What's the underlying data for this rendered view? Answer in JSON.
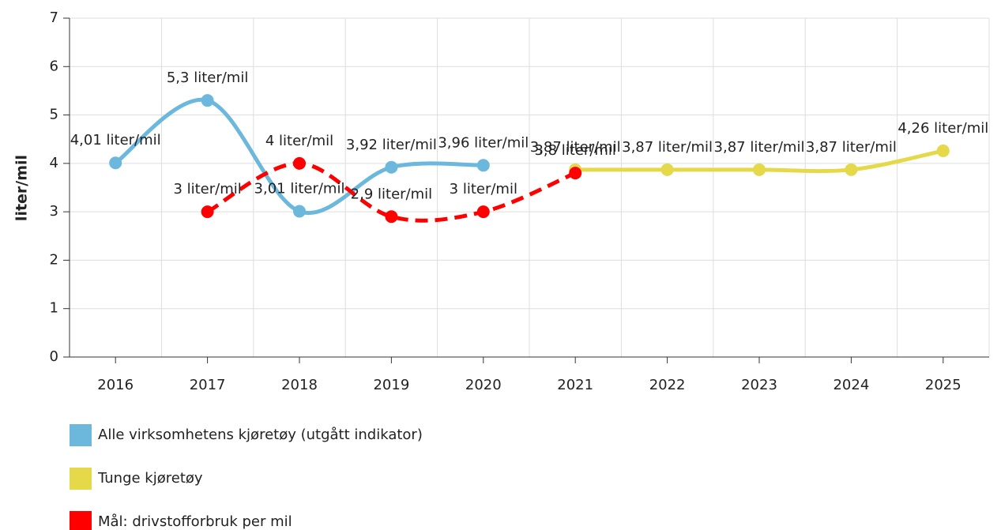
{
  "chart_data": {
    "type": "line",
    "y_label": "liter/mil",
    "categories": [
      "2016",
      "2017",
      "2018",
      "2019",
      "2020",
      "2021",
      "2022",
      "2023",
      "2024",
      "2025"
    ],
    "series": [
      {
        "name": "Alle virksomhetens kjøretøy (utgått indikator)",
        "color": "#6bb8dc",
        "dashed": false,
        "values": [
          4.01,
          5.3,
          3.01,
          3.92,
          3.96,
          null,
          null,
          null,
          null,
          null
        ],
        "value_labels": [
          "4,01 liter/mil",
          "5,3 liter/mil",
          "3,01 liter/mil",
          "3,92 liter/mil",
          "3,96 liter/mil",
          null,
          null,
          null,
          null,
          null
        ]
      },
      {
        "name": "Tunge kjøretøy",
        "color": "#e5d94a",
        "dashed": false,
        "values": [
          null,
          null,
          null,
          null,
          null,
          3.87,
          3.87,
          3.87,
          3.87,
          4.26
        ],
        "value_labels": [
          null,
          null,
          null,
          null,
          null,
          "3,87 liter/mil",
          "3,87 liter/mil",
          "3,87 liter/mil",
          "3,87 liter/mil",
          "4,26 liter/mil"
        ]
      },
      {
        "name": "Mål: drivstofforbruk per mil",
        "color": "#ff0000",
        "dashed": true,
        "values": [
          null,
          3,
          4,
          2.9,
          3,
          3.8,
          null,
          null,
          null,
          null
        ],
        "value_labels": [
          null,
          "3 liter/mil",
          "4 liter/mil",
          "2,9 liter/mil",
          "3 liter/mil",
          "3,8 liter/mil",
          null,
          null,
          null,
          null
        ]
      }
    ],
    "ylim": [
      0,
      7
    ],
    "yticks": [
      0,
      1,
      2,
      3,
      4,
      5,
      6,
      7
    ],
    "grid": true
  }
}
